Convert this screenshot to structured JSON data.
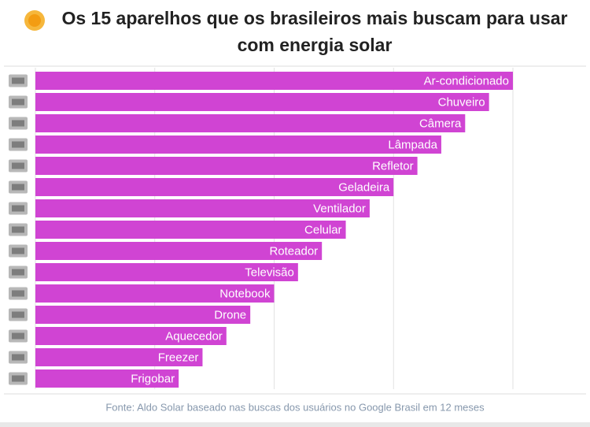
{
  "chart_data": {
    "type": "barh",
    "title": "Os 15 aparelhos que os brasileiros mais buscam para usar com energia solar",
    "source": "Fonte: Aldo Solar baseado nas buscas dos usuários no Google Brasil em 12 meses",
    "categories": [
      "Ar-condicionado",
      "Chuveiro",
      "Câmera",
      "Lâmpada",
      "Refletor",
      "Geladeira",
      "Ventilador",
      "Celular",
      "Roteador",
      "Televisão",
      "Notebook",
      "Drone",
      "Aquecedor",
      "Freezer",
      "Frigobar"
    ],
    "values": [
      100,
      95,
      90,
      85,
      80,
      75,
      70,
      65,
      60,
      55,
      50,
      45,
      40,
      35,
      30
    ],
    "color": "#d044d3",
    "xlim": [
      0,
      100
    ],
    "xticks": [
      0,
      25,
      50,
      75,
      100
    ],
    "grid": true
  }
}
